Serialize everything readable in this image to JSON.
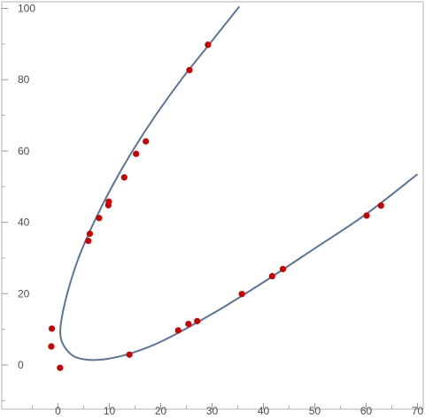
{
  "chart_data": {
    "type": "scatter",
    "title": "",
    "xlabel": "",
    "ylabel": "",
    "xlim": [
      -5,
      70
    ],
    "ylim": [
      -10,
      102
    ],
    "x_ticks": [
      0,
      10,
      20,
      30,
      40,
      50,
      60,
      70
    ],
    "y_ticks": [
      0,
      20,
      40,
      60,
      80,
      100
    ],
    "x_tick_labels": [
      "0",
      "10",
      "20",
      "30",
      "40",
      "50",
      "60",
      "70"
    ],
    "y_tick_labels": [
      "0",
      "20",
      "40",
      "60",
      "80",
      "100"
    ],
    "grid": false,
    "series": [
      {
        "kind": "points",
        "color": "#cc0000",
        "points": [
          {
            "x": -1.2,
            "y": 10.2
          },
          {
            "x": -1.3,
            "y": 5.2
          },
          {
            "x": 0.4,
            "y": -0.8
          },
          {
            "x": 5.9,
            "y": 34.8
          },
          {
            "x": 6.2,
            "y": 36.8
          },
          {
            "x": 8.0,
            "y": 41.2
          },
          {
            "x": 9.8,
            "y": 44.8
          },
          {
            "x": 9.9,
            "y": 45.8
          },
          {
            "x": 12.9,
            "y": 52.6
          },
          {
            "x": 15.2,
            "y": 59.2
          },
          {
            "x": 17.1,
            "y": 62.7
          },
          {
            "x": 25.6,
            "y": 82.7
          },
          {
            "x": 29.2,
            "y": 89.8
          },
          {
            "x": 13.9,
            "y": 2.9
          },
          {
            "x": 23.4,
            "y": 9.7
          },
          {
            "x": 25.4,
            "y": 11.5
          },
          {
            "x": 27.1,
            "y": 12.3
          },
          {
            "x": 35.8,
            "y": 19.9
          },
          {
            "x": 41.7,
            "y": 24.9
          },
          {
            "x": 43.8,
            "y": 26.9
          },
          {
            "x": 60.1,
            "y": 41.9
          },
          {
            "x": 62.9,
            "y": 44.7
          }
        ]
      },
      {
        "kind": "curve",
        "color": "#5b7499",
        "points": [
          {
            "x": 35.3,
            "y": 100.5
          },
          {
            "x": 29.5,
            "y": 90
          },
          {
            "x": 24.0,
            "y": 80
          },
          {
            "x": 19.0,
            "y": 70
          },
          {
            "x": 14.5,
            "y": 60
          },
          {
            "x": 10.5,
            "y": 50
          },
          {
            "x": 7.0,
            "y": 40
          },
          {
            "x": 4.0,
            "y": 30
          },
          {
            "x": 1.8,
            "y": 20
          },
          {
            "x": 0.6,
            "y": 12
          },
          {
            "x": 0.5,
            "y": 8
          },
          {
            "x": 1.3,
            "y": 5
          },
          {
            "x": 3.0,
            "y": 2.5
          },
          {
            "x": 5.0,
            "y": 1.6
          },
          {
            "x": 7.0,
            "y": 1.4
          },
          {
            "x": 10.0,
            "y": 1.8
          },
          {
            "x": 14.0,
            "y": 3.2
          },
          {
            "x": 20.0,
            "y": 6.5
          },
          {
            "x": 30.0,
            "y": 14.3
          },
          {
            "x": 40.0,
            "y": 23.2
          },
          {
            "x": 50.0,
            "y": 32.7
          },
          {
            "x": 60.0,
            "y": 42.3
          },
          {
            "x": 70.0,
            "y": 53.5
          }
        ]
      }
    ]
  }
}
